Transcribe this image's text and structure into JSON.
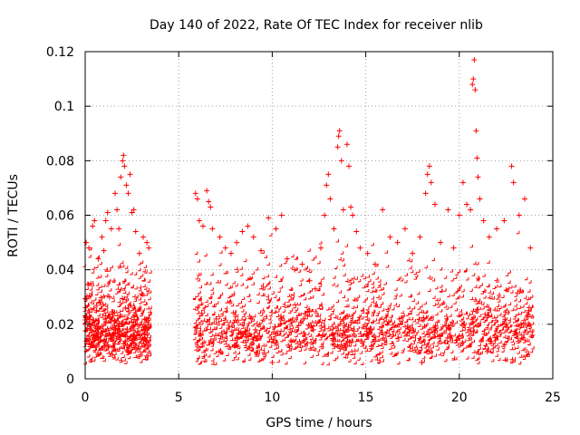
{
  "chart_data": {
    "type": "scatter",
    "title": "Day 140 of 2022, Rate Of TEC Index for receiver nlib",
    "xlabel": "GPS time / hours",
    "ylabel": "ROTI / TECUs",
    "xlim": [
      0,
      25
    ],
    "ylim": [
      0,
      0.12
    ],
    "xticks": [
      0,
      5,
      10,
      15,
      20,
      25
    ],
    "xtick_labels": [
      "0",
      "5",
      "10",
      "15",
      "20",
      "25"
    ],
    "yticks": [
      0,
      0.02,
      0.04,
      0.06,
      0.08,
      0.1,
      0.12
    ],
    "ytick_labels": [
      "0",
      "0.02",
      "0.04",
      "0.06",
      "0.08",
      "0.1",
      "0.12"
    ],
    "grid": true,
    "legend": "none",
    "marker": "plus",
    "color": "#ff0000",
    "series": [
      {
        "points": [
          [
            0.05,
            0.05
          ],
          [
            0.2,
            0.048
          ],
          [
            0.4,
            0.056
          ],
          [
            0.5,
            0.058
          ],
          [
            0.7,
            0.044
          ],
          [
            0.9,
            0.052
          ],
          [
            1.0,
            0.047
          ],
          [
            1.1,
            0.058
          ],
          [
            1.2,
            0.061
          ],
          [
            1.4,
            0.055
          ],
          [
            1.6,
            0.068
          ],
          [
            1.7,
            0.062
          ],
          [
            1.8,
            0.055
          ],
          [
            1.9,
            0.074
          ],
          [
            2.0,
            0.08
          ],
          [
            2.05,
            0.082
          ],
          [
            2.1,
            0.078
          ],
          [
            2.2,
            0.071
          ],
          [
            2.3,
            0.068
          ],
          [
            2.4,
            0.075
          ],
          [
            2.5,
            0.061
          ],
          [
            2.6,
            0.062
          ],
          [
            2.7,
            0.054
          ],
          [
            2.9,
            0.046
          ],
          [
            3.1,
            0.052
          ],
          [
            3.3,
            0.05
          ],
          [
            3.4,
            0.048
          ],
          [
            5.9,
            0.068
          ],
          [
            6.0,
            0.066
          ],
          [
            6.1,
            0.058
          ],
          [
            6.3,
            0.056
          ],
          [
            6.5,
            0.069
          ],
          [
            6.6,
            0.065
          ],
          [
            6.7,
            0.063
          ],
          [
            6.8,
            0.055
          ],
          [
            7.2,
            0.052
          ],
          [
            7.5,
            0.048
          ],
          [
            7.8,
            0.046
          ],
          [
            8.1,
            0.05
          ],
          [
            8.4,
            0.054
          ],
          [
            8.7,
            0.056
          ],
          [
            9.0,
            0.052
          ],
          [
            9.4,
            0.047
          ],
          [
            9.8,
            0.059
          ],
          [
            10.2,
            0.055
          ],
          [
            10.5,
            0.06
          ],
          [
            10.8,
            0.044
          ],
          [
            11.2,
            0.04
          ],
          [
            11.6,
            0.042
          ],
          [
            12.0,
            0.036
          ],
          [
            12.3,
            0.033
          ],
          [
            12.6,
            0.048
          ],
          [
            12.8,
            0.06
          ],
          [
            12.9,
            0.071
          ],
          [
            13.0,
            0.075
          ],
          [
            13.1,
            0.066
          ],
          [
            13.3,
            0.055
          ],
          [
            13.5,
            0.085
          ],
          [
            13.55,
            0.089
          ],
          [
            13.6,
            0.091
          ],
          [
            13.7,
            0.08
          ],
          [
            13.8,
            0.062
          ],
          [
            14.0,
            0.086
          ],
          [
            14.1,
            0.078
          ],
          [
            14.2,
            0.063
          ],
          [
            14.3,
            0.06
          ],
          [
            14.5,
            0.054
          ],
          [
            14.7,
            0.048
          ],
          [
            15.1,
            0.046
          ],
          [
            15.5,
            0.042
          ],
          [
            15.9,
            0.062
          ],
          [
            16.3,
            0.052
          ],
          [
            16.7,
            0.05
          ],
          [
            17.1,
            0.055
          ],
          [
            17.5,
            0.046
          ],
          [
            17.9,
            0.052
          ],
          [
            18.2,
            0.068
          ],
          [
            18.3,
            0.075
          ],
          [
            18.4,
            0.078
          ],
          [
            18.5,
            0.072
          ],
          [
            18.7,
            0.064
          ],
          [
            19.0,
            0.05
          ],
          [
            19.4,
            0.062
          ],
          [
            19.7,
            0.048
          ],
          [
            20.0,
            0.06
          ],
          [
            20.2,
            0.072
          ],
          [
            20.4,
            0.064
          ],
          [
            20.6,
            0.062
          ],
          [
            20.7,
            0.108
          ],
          [
            20.75,
            0.11
          ],
          [
            20.8,
            0.117
          ],
          [
            20.85,
            0.106
          ],
          [
            20.9,
            0.091
          ],
          [
            20.95,
            0.081
          ],
          [
            21.0,
            0.074
          ],
          [
            21.1,
            0.066
          ],
          [
            21.3,
            0.058
          ],
          [
            21.6,
            0.052
          ],
          [
            22.0,
            0.055
          ],
          [
            22.4,
            0.058
          ],
          [
            22.8,
            0.078
          ],
          [
            22.9,
            0.072
          ],
          [
            23.2,
            0.06
          ],
          [
            23.5,
            0.066
          ],
          [
            23.8,
            0.048
          ],
          [
            0.1,
            0.022
          ],
          [
            0.3,
            0.018
          ],
          [
            0.6,
            0.025
          ],
          [
            0.8,
            0.014
          ],
          [
            1.3,
            0.03
          ],
          [
            1.5,
            0.016
          ],
          [
            2.15,
            0.026
          ],
          [
            2.8,
            0.02
          ],
          [
            3.2,
            0.012
          ],
          [
            6.2,
            0.016
          ],
          [
            7.0,
            0.022
          ],
          [
            8.0,
            0.012
          ],
          [
            9.1,
            0.018
          ],
          [
            10.0,
            0.006
          ],
          [
            11.0,
            0.014
          ],
          [
            12.2,
            0.018
          ],
          [
            13.9,
            0.016
          ],
          [
            15.3,
            0.012
          ],
          [
            16.8,
            0.022
          ],
          [
            18.0,
            0.006
          ],
          [
            19.5,
            0.016
          ],
          [
            21.5,
            0.01
          ],
          [
            22.5,
            0.02
          ],
          [
            23.9,
            0.016
          ]
        ]
      }
    ]
  }
}
